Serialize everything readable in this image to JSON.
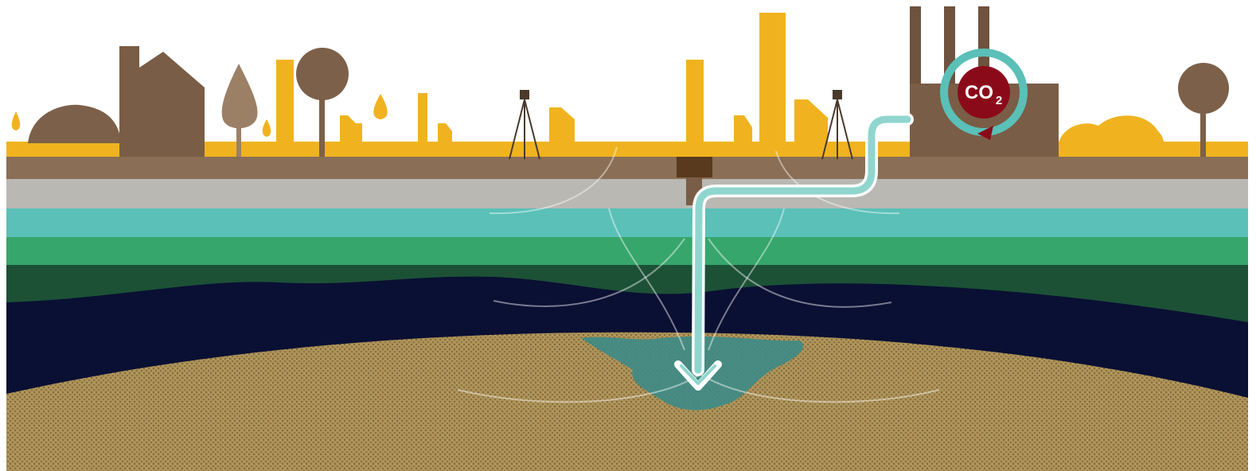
{
  "labels": {
    "co2_main": "CO",
    "co2_subscript": "2"
  }
}
